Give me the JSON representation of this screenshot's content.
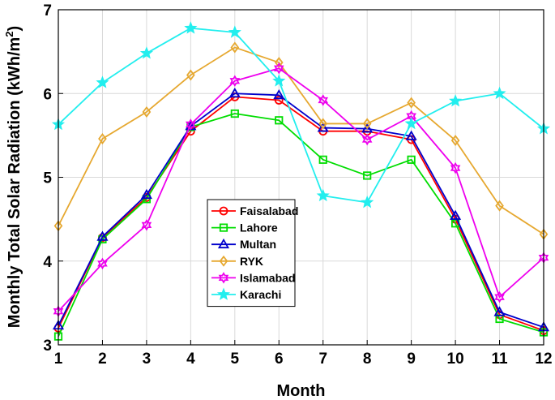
{
  "chart_data": {
    "type": "line",
    "title": "",
    "xlabel": "Month",
    "ylabel_main": "Monthly Total Solar Radiation (kWh/m",
    "ylabel_sup": "2",
    "ylabel_end": ")",
    "xlim": [
      1,
      12
    ],
    "ylim": [
      3,
      7
    ],
    "xticks": [
      1,
      2,
      3,
      4,
      5,
      6,
      7,
      8,
      9,
      10,
      11,
      12
    ],
    "yticks": [
      3,
      4,
      5,
      6,
      7
    ],
    "grid": true,
    "legend_position": "lower-center",
    "x": [
      1,
      2,
      3,
      4,
      5,
      6,
      7,
      8,
      9,
      10,
      11,
      12
    ],
    "series": [
      {
        "name": "Faisalabad",
        "color": "#ff0000",
        "marker": "circle",
        "values": [
          3.2,
          4.28,
          4.76,
          5.55,
          5.96,
          5.92,
          5.55,
          5.55,
          5.45,
          4.5,
          3.36,
          3.17
        ]
      },
      {
        "name": "Lahore",
        "color": "#00dd00",
        "marker": "square",
        "values": [
          3.1,
          4.26,
          4.74,
          5.6,
          5.76,
          5.68,
          5.21,
          5.02,
          5.21,
          4.45,
          3.31,
          3.15
        ]
      },
      {
        "name": "Multan",
        "color": "#0000cc",
        "marker": "triangle",
        "values": [
          3.23,
          4.29,
          4.79,
          5.61,
          6.0,
          5.98,
          5.59,
          5.58,
          5.49,
          4.54,
          3.39,
          3.21
        ]
      },
      {
        "name": "RYK",
        "color": "#e6a830",
        "marker": "diamond",
        "values": [
          4.42,
          5.46,
          5.78,
          6.22,
          6.55,
          6.37,
          5.64,
          5.64,
          5.89,
          5.44,
          4.66,
          4.32
        ]
      },
      {
        "name": "Islamabad",
        "color": "#ee00ee",
        "marker": "hexagram",
        "values": [
          3.4,
          3.97,
          4.43,
          5.63,
          6.15,
          6.3,
          5.92,
          5.45,
          5.73,
          5.11,
          3.57,
          4.04
        ]
      },
      {
        "name": "Karachi",
        "color": "#22eeee",
        "marker": "pentagram",
        "values": [
          5.63,
          6.13,
          6.48,
          6.78,
          6.73,
          6.15,
          4.78,
          4.7,
          5.64,
          5.91,
          6.0,
          5.58
        ]
      }
    ]
  }
}
